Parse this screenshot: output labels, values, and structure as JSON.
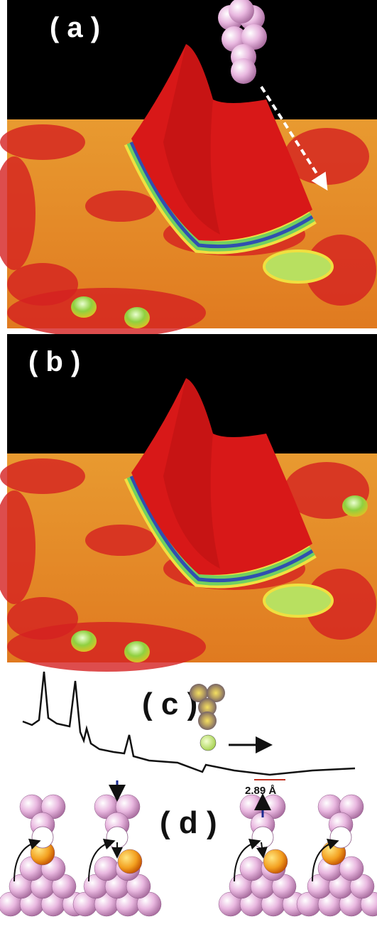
{
  "panels": [
    {
      "label": "( a )"
    },
    {
      "label": "( b )"
    },
    {
      "label": "( c )"
    },
    {
      "label": "( d )"
    }
  ],
  "scale_label": "2.89 Å"
}
